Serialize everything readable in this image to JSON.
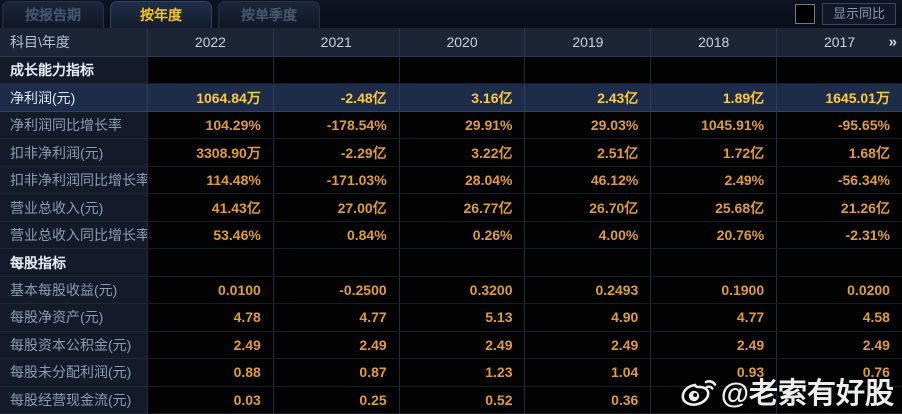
{
  "tabs": [
    {
      "label": "按报告期",
      "active": false
    },
    {
      "label": "按年度",
      "active": true
    },
    {
      "label": "按单季度",
      "active": false
    }
  ],
  "controls": {
    "show_yoy_label": "显示同比",
    "show_yoy_checked": false
  },
  "header": {
    "subject_label": "科目\\年度",
    "years": [
      "2022",
      "2021",
      "2020",
      "2019",
      "2018",
      "2017"
    ],
    "more_icon": "»"
  },
  "table": {
    "rows": [
      {
        "section": true,
        "label": "成长能力指标",
        "values": [
          "",
          "",
          "",
          "",
          "",
          ""
        ]
      },
      {
        "highlight": true,
        "label": "净利润(元)",
        "values": [
          "1064.84万",
          "-2.48亿",
          "3.16亿",
          "2.43亿",
          "1.89亿",
          "1645.01万"
        ]
      },
      {
        "label": "净利润同比增长率",
        "values": [
          "104.29%",
          "-178.54%",
          "29.91%",
          "29.03%",
          "1045.91%",
          "-95.65%"
        ]
      },
      {
        "label": "扣非净利润(元)",
        "values": [
          "3308.90万",
          "-2.29亿",
          "3.22亿",
          "2.51亿",
          "1.72亿",
          "1.68亿"
        ]
      },
      {
        "label": "扣非净利润同比增长率",
        "values": [
          "114.48%",
          "-171.03%",
          "28.04%",
          "46.12%",
          "2.49%",
          "-56.34%"
        ]
      },
      {
        "label": "营业总收入(元)",
        "values": [
          "41.43亿",
          "27.00亿",
          "26.77亿",
          "26.70亿",
          "25.68亿",
          "21.26亿"
        ]
      },
      {
        "label": "营业总收入同比增长率",
        "values": [
          "53.46%",
          "0.84%",
          "0.26%",
          "4.00%",
          "20.76%",
          "-2.31%"
        ]
      },
      {
        "section": true,
        "label": "每股指标",
        "values": [
          "",
          "",
          "",
          "",
          "",
          ""
        ]
      },
      {
        "label": "基本每股收益(元)",
        "values": [
          "0.0100",
          "-0.2500",
          "0.3200",
          "0.2493",
          "0.1900",
          "0.0200"
        ]
      },
      {
        "label": "每股净资产(元)",
        "values": [
          "4.78",
          "4.77",
          "5.13",
          "4.90",
          "4.77",
          "4.58"
        ]
      },
      {
        "label": "每股资本公积金(元)",
        "values": [
          "2.49",
          "2.49",
          "2.49",
          "2.49",
          "2.49",
          "2.49"
        ]
      },
      {
        "label": "每股未分配利润(元)",
        "values": [
          "0.88",
          "0.87",
          "1.23",
          "1.04",
          "0.93",
          "0.76"
        ]
      },
      {
        "label": "每股经营现金流(元)",
        "values": [
          "0.03",
          "0.25",
          "0.52",
          "0.36",
          "",
          ""
        ]
      }
    ]
  },
  "watermark": {
    "text": "@老索有好股"
  },
  "colors": {
    "accent_gold": "#f5c41f",
    "value_orange": "#df9d39",
    "highlight_gold": "#ffc93f",
    "highlight_row_bg": "#1d2c49",
    "header_bg": "#1b2536",
    "label_col_bg": "#131b2a",
    "cell_bg": "#030304"
  }
}
